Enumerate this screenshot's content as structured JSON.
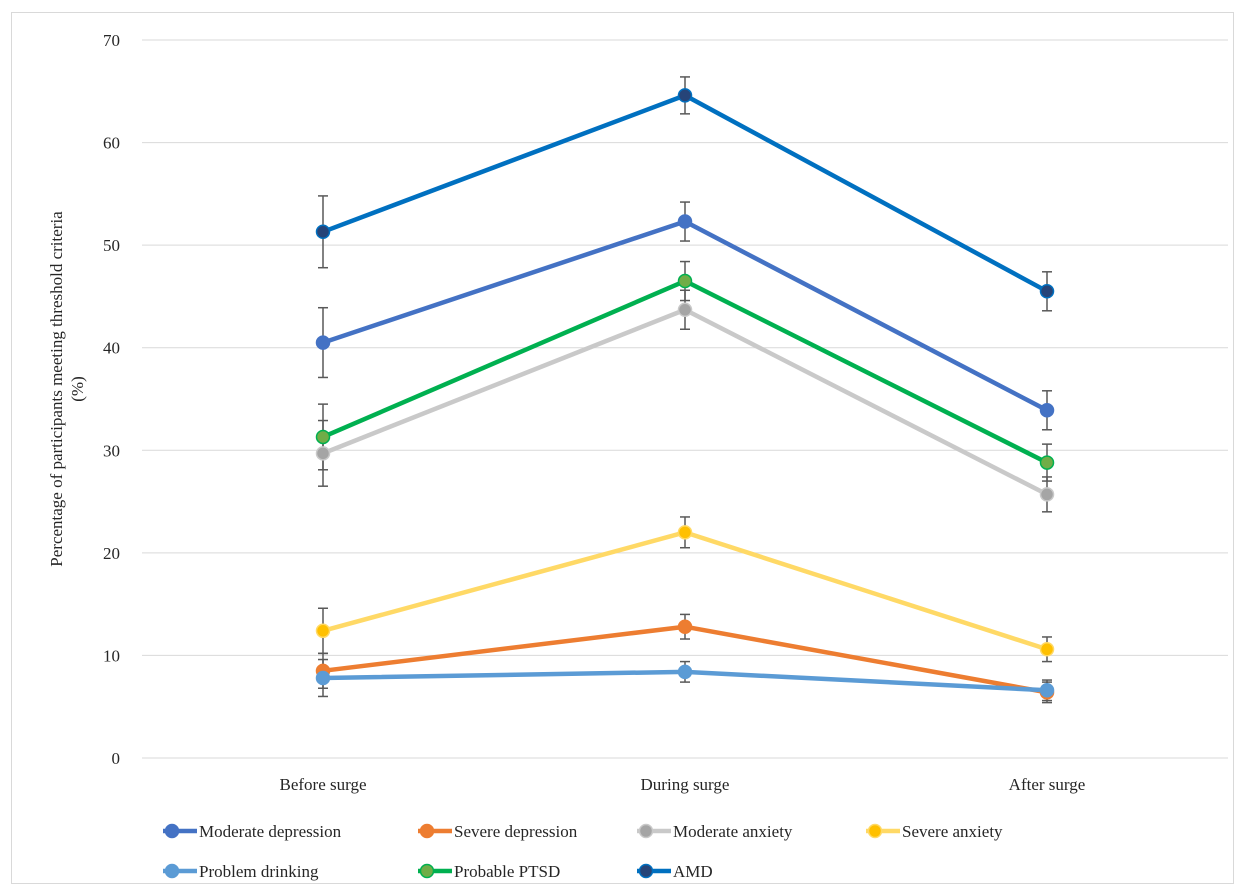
{
  "chart_data": {
    "type": "line",
    "categories": [
      "Before surge",
      "During surge",
      "After surge"
    ],
    "ylabel_lines": [
      "Percentage of participants meeting threshold criteria",
      "(%)"
    ],
    "xlabel": "",
    "ylim": [
      0,
      70
    ],
    "yticks": [
      0,
      10,
      20,
      30,
      40,
      50,
      60,
      70
    ],
    "ytick_labels": [
      "0",
      "10",
      "20",
      "30",
      "40",
      "50",
      "60",
      "70"
    ],
    "grid": true,
    "legend_position": "bottom",
    "series": [
      {
        "name": "Moderate depression",
        "color": "#4472C4",
        "marker_color": "#4472C4",
        "values": [
          40.5,
          52.3,
          33.9
        ],
        "error": [
          3.4,
          1.9,
          1.9
        ]
      },
      {
        "name": "Severe depression",
        "color": "#ED7D31",
        "marker_color": "#ED7D31",
        "values": [
          8.5,
          12.8,
          6.4
        ],
        "error": [
          1.7,
          1.2,
          1.0
        ]
      },
      {
        "name": "Moderate anxiety",
        "color": "#C9C9C9",
        "marker_color": "#A5A5A5",
        "values": [
          29.7,
          43.7,
          25.7
        ],
        "error": [
          3.2,
          1.9,
          1.7
        ]
      },
      {
        "name": "Severe anxiety",
        "color": "#FFD966",
        "marker_color": "#FFC000",
        "values": [
          12.4,
          22.0,
          10.6
        ],
        "error": [
          2.2,
          1.5,
          1.2
        ]
      },
      {
        "name": "Problem drinking",
        "color": "#5B9BD5",
        "marker_color": "#5B9BD5",
        "values": [
          7.8,
          8.4,
          6.6
        ],
        "error": [
          1.8,
          1.0,
          1.0
        ]
      },
      {
        "name": "Probable PTSD",
        "color": "#00B050",
        "marker_color": "#70AD47",
        "values": [
          31.3,
          46.5,
          28.8
        ],
        "error": [
          3.2,
          1.9,
          1.8
        ]
      },
      {
        "name": "AMD",
        "color": "#0070C0",
        "marker_color": "#264478",
        "values": [
          51.3,
          64.6,
          45.5
        ],
        "error": [
          3.5,
          1.8,
          1.9
        ]
      }
    ]
  }
}
